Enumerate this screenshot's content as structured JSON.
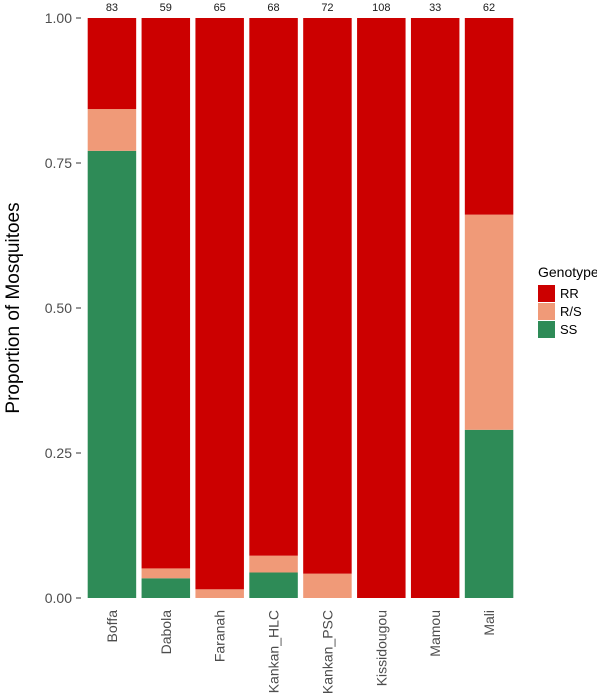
{
  "chart_data": {
    "type": "bar",
    "stacked": true,
    "categories": [
      "Boffa",
      "Dabola",
      "Faranah",
      "Kankan_HLC",
      "Kankan_PSC",
      "Kissidougou",
      "Mamou",
      "Mali"
    ],
    "counts": [
      "83",
      "59",
      "65",
      "68",
      "72",
      "108",
      "33",
      "62"
    ],
    "series": [
      {
        "name": "SS",
        "color": "#2e8b57",
        "values": [
          0.771,
          0.034,
          0.0,
          0.044,
          0.0,
          0.0,
          0.0,
          0.29
        ]
      },
      {
        "name": "R/S",
        "color": "#f09a78",
        "values": [
          0.072,
          0.017,
          0.015,
          0.029,
          0.042,
          0.0,
          0.0,
          0.371
        ]
      },
      {
        "name": "RR",
        "color": "#cc0000",
        "values": [
          0.157,
          0.949,
          0.985,
          0.927,
          0.958,
          1.0,
          1.0,
          0.339
        ]
      }
    ],
    "title": "",
    "xlabel": "",
    "ylabel": "Proportion of Mosquitoes",
    "ylim": [
      0,
      1
    ],
    "yticks": [
      "0.00",
      "0.25",
      "0.50",
      "0.75",
      "1.00"
    ],
    "grid": false,
    "legend": {
      "title": "Genotype",
      "placement": "right",
      "order": [
        "RR",
        "R/S",
        "SS"
      ]
    }
  }
}
